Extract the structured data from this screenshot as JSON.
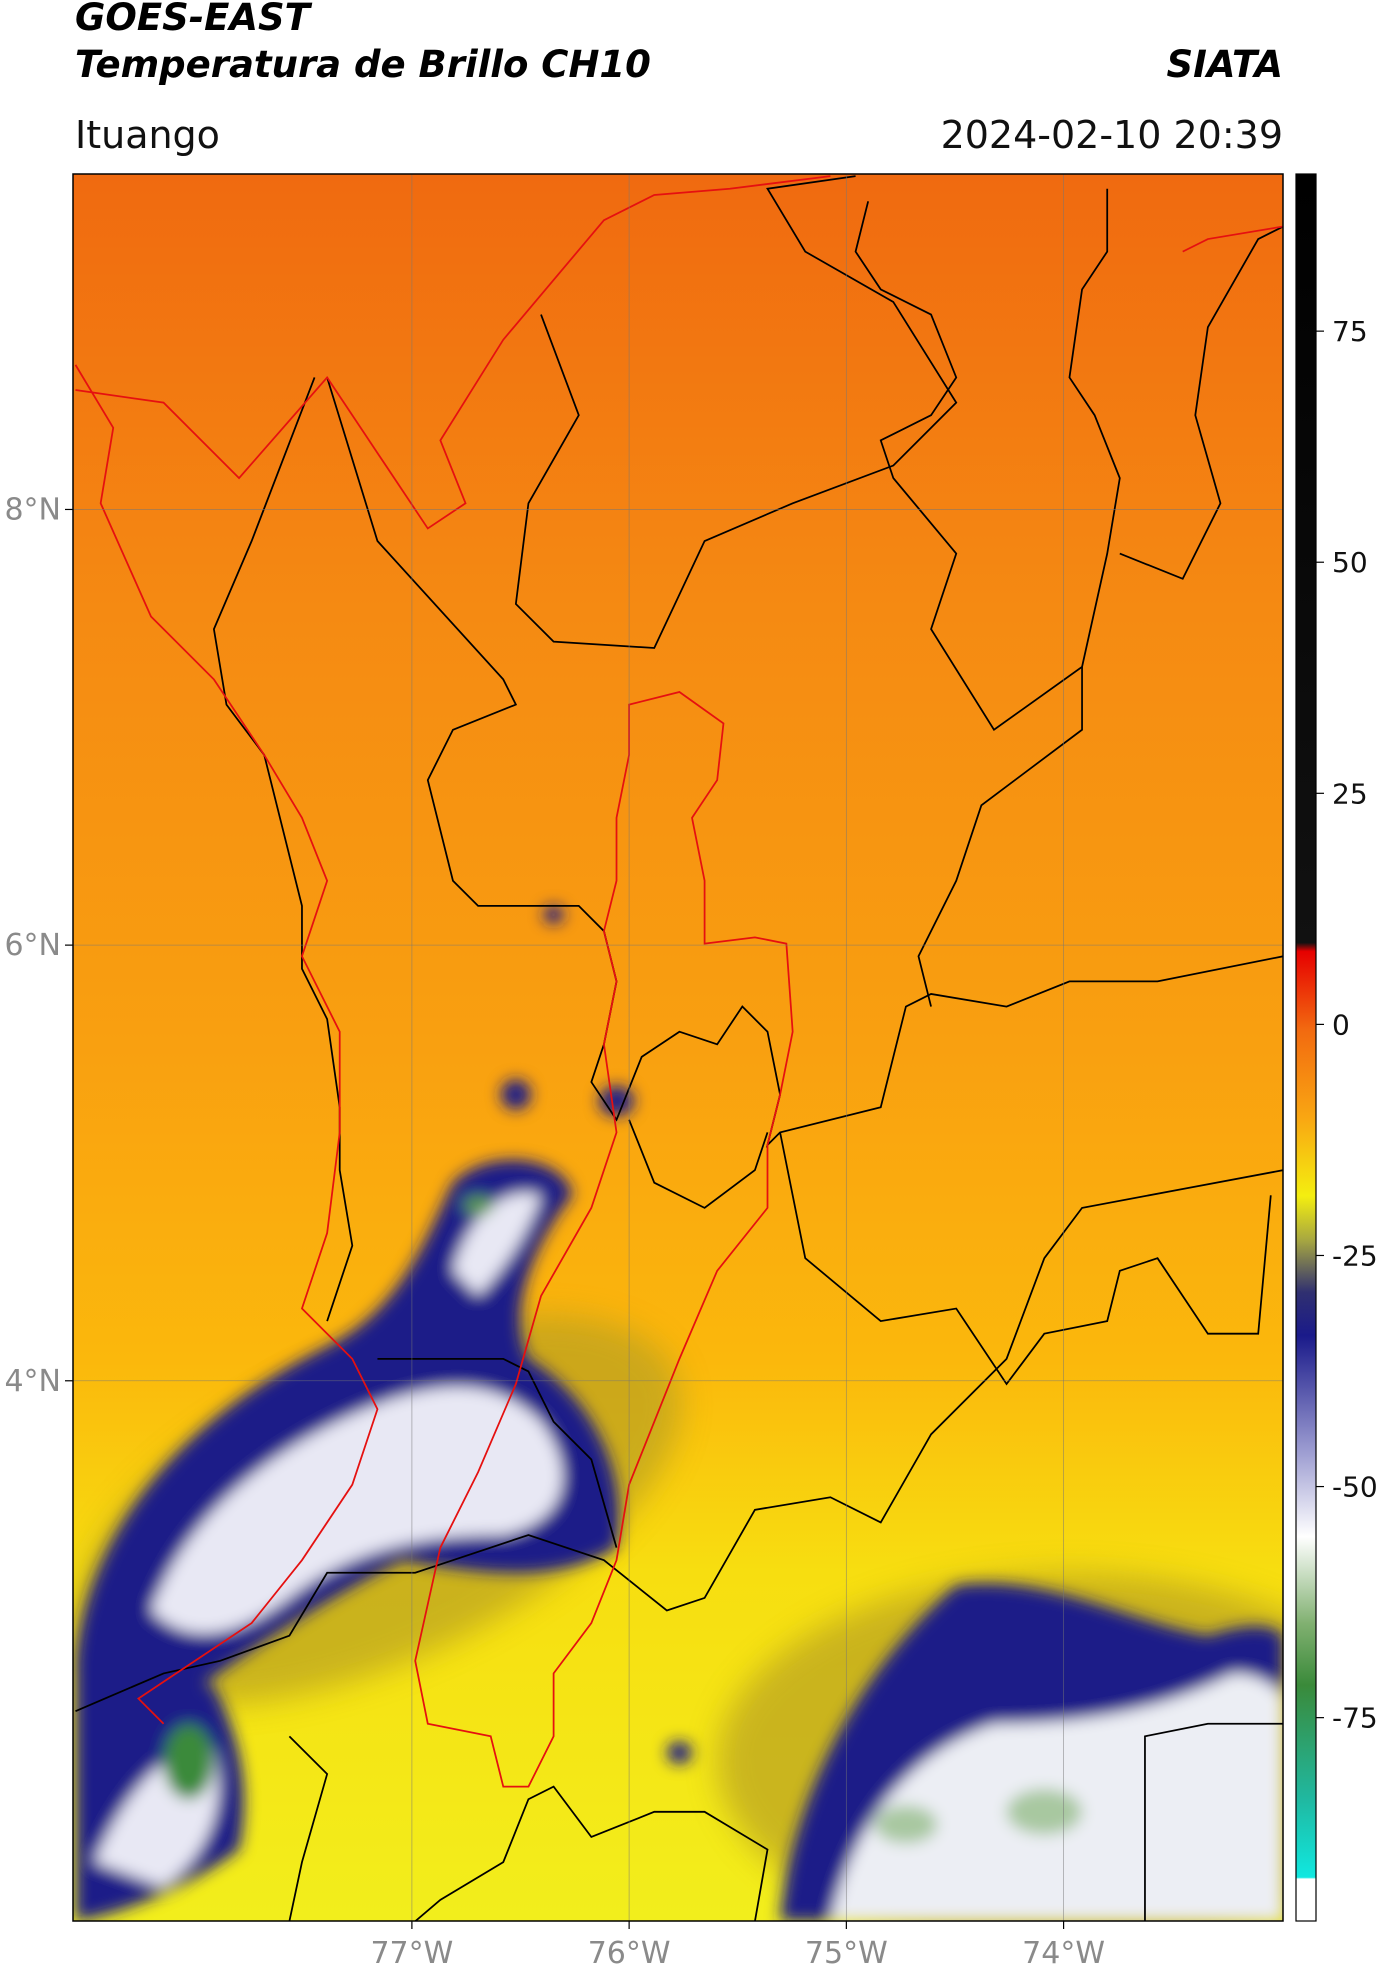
{
  "header": {
    "title": "GOES-EAST",
    "subtitle": "Temperatura de Brillo CH10",
    "credit": "SIATA",
    "location": "Ituango",
    "datetime": "2024-02-10 20:39"
  },
  "map": {
    "lonlim": [
      -78.56,
      -72.99
    ],
    "latlim": [
      1.52,
      9.54
    ],
    "lonticks": [
      {
        "value": -77,
        "label": "77°W"
      },
      {
        "value": -76,
        "label": "76°W"
      },
      {
        "value": -75,
        "label": "75°W"
      },
      {
        "value": -74,
        "label": "74°W"
      }
    ],
    "latticks": [
      {
        "value": 8,
        "label": "8°N"
      },
      {
        "value": 6,
        "label": "6°N"
      },
      {
        "value": 4,
        "label": "4°N"
      }
    ],
    "grid": true
  },
  "colorbar": {
    "clim": [
      -97,
      92
    ],
    "ticks": [
      75,
      50,
      25,
      0,
      -25,
      -50,
      -75
    ]
  }
}
